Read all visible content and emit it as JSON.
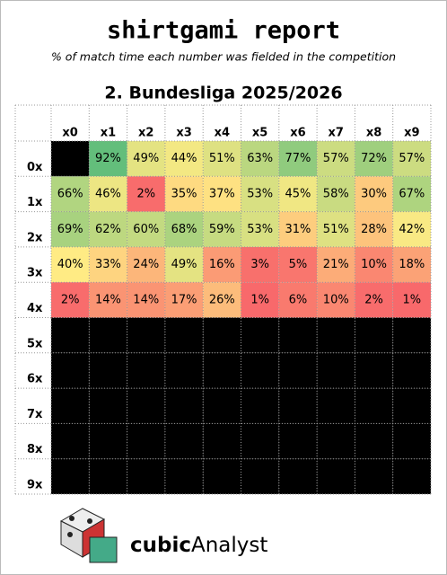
{
  "chart_data": {
    "type": "heatmap",
    "title": "shirtgami report",
    "subtitle": "% of match time each number was fielded in the competition",
    "heading": "2. Bundesliga 2025/2026",
    "x_categories": [
      "x0",
      "x1",
      "x2",
      "x3",
      "x4",
      "x5",
      "x6",
      "x7",
      "x8",
      "x9"
    ],
    "y_categories": [
      "0x",
      "1x",
      "2x",
      "3x",
      "4x",
      "5x",
      "6x",
      "7x",
      "8x",
      "9x"
    ],
    "values": [
      [
        null,
        92,
        49,
        44,
        51,
        63,
        77,
        57,
        72,
        57
      ],
      [
        66,
        46,
        2,
        35,
        37,
        53,
        45,
        58,
        30,
        67
      ],
      [
        69,
        62,
        60,
        68,
        59,
        53,
        31,
        51,
        28,
        42
      ],
      [
        40,
        33,
        24,
        49,
        16,
        3,
        5,
        21,
        10,
        18
      ],
      [
        2,
        14,
        14,
        17,
        26,
        1,
        6,
        10,
        2,
        1
      ],
      [
        null,
        null,
        null,
        null,
        null,
        null,
        null,
        null,
        null,
        null
      ],
      [
        null,
        null,
        null,
        null,
        null,
        null,
        null,
        null,
        null,
        null
      ],
      [
        null,
        null,
        null,
        null,
        null,
        null,
        null,
        null,
        null,
        null
      ],
      [
        null,
        null,
        null,
        null,
        null,
        null,
        null,
        null,
        null,
        null
      ],
      [
        null,
        null,
        null,
        null,
        null,
        null,
        null,
        null,
        null,
        null
      ]
    ],
    "value_labels": [
      [
        null,
        "92%",
        "49%",
        "44%",
        "51%",
        "63%",
        "77%",
        "57%",
        "72%",
        "57%"
      ],
      [
        "66%",
        "46%",
        "2%",
        "35%",
        "37%",
        "53%",
        "45%",
        "58%",
        "30%",
        "67%"
      ],
      [
        "69%",
        "62%",
        "60%",
        "68%",
        "59%",
        "53%",
        "31%",
        "51%",
        "28%",
        "42%"
      ],
      [
        "40%",
        "33%",
        "24%",
        "49%",
        "16%",
        "3%",
        "5%",
        "21%",
        "10%",
        "18%"
      ],
      [
        "2%",
        "14%",
        "14%",
        "17%",
        "26%",
        "1%",
        "6%",
        "10%",
        "2%",
        "1%"
      ],
      [
        null,
        null,
        null,
        null,
        null,
        null,
        null,
        null,
        null,
        null
      ],
      [
        null,
        null,
        null,
        null,
        null,
        null,
        null,
        null,
        null,
        null
      ],
      [
        null,
        null,
        null,
        null,
        null,
        null,
        null,
        null,
        null,
        null
      ],
      [
        null,
        null,
        null,
        null,
        null,
        null,
        null,
        null,
        null,
        null
      ],
      [
        null,
        null,
        null,
        null,
        null,
        null,
        null,
        null,
        null,
        null
      ]
    ],
    "colors": {
      "low": "#f8696b",
      "mid": "#ffeb84",
      "high": "#63be7b",
      "empty": "#000000"
    },
    "logo": {
      "bold": "cubic",
      "regular": "Analyst"
    }
  }
}
